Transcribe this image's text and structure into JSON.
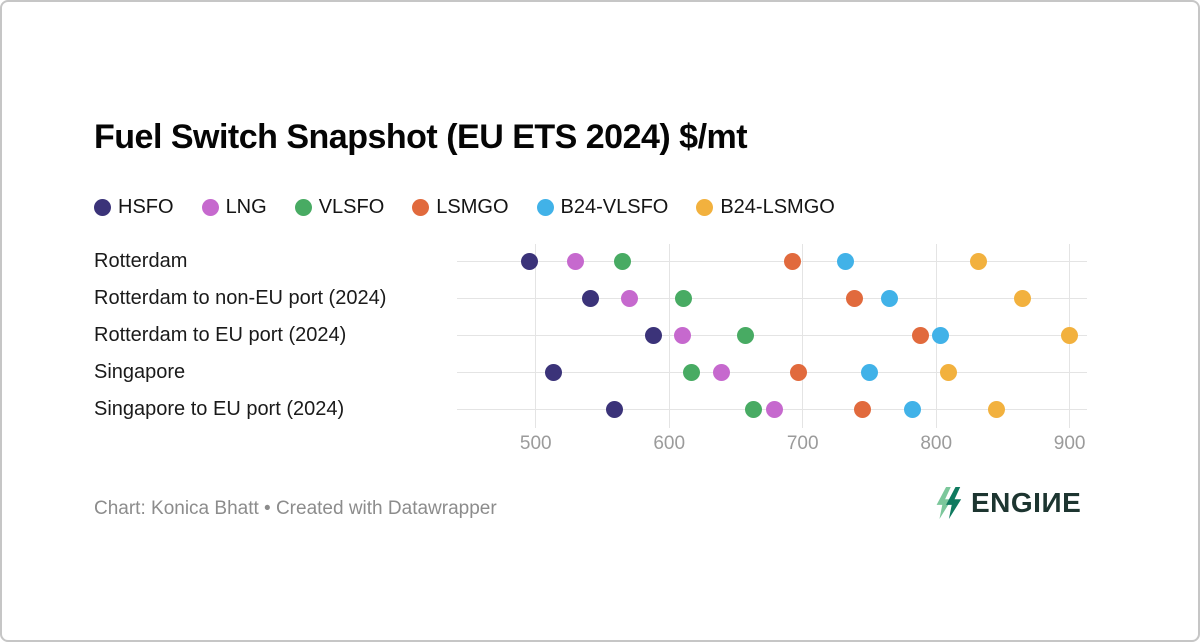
{
  "title": "Fuel Switch Snapshot (EU ETS 2024) $/mt",
  "footer": {
    "credit": "Chart: Konica Bhatt • Created with Datawrapper",
    "logo_text": "ENGIИE"
  },
  "logo_colors": {
    "mark_light": "#7CC79B",
    "mark_dark": "#0F7A5F",
    "text": "#1d3530"
  },
  "chart_data": {
    "type": "scatter",
    "title": "Fuel Switch Snapshot (EU ETS 2024) $/mt",
    "categories": [
      "Rotterdam",
      "Rotterdam to non-EU port (2024)",
      "Rotterdam to EU port (2024)",
      "Singapore",
      "Singapore to EU port (2024)"
    ],
    "series": [
      {
        "name": "HSFO",
        "color": "#3B3379",
        "values": [
          495,
          541,
          588,
          513,
          559
        ]
      },
      {
        "name": "LNG",
        "color": "#C669CE",
        "values": [
          530,
          570,
          610,
          639,
          679
        ]
      },
      {
        "name": "VLSFO",
        "color": "#48AB63",
        "values": [
          565,
          611,
          657,
          617,
          663
        ]
      },
      {
        "name": "LSMGO",
        "color": "#E16A3D",
        "values": [
          692,
          739,
          788,
          697,
          745
        ]
      },
      {
        "name": "B24-VLSFO",
        "color": "#41B2E8",
        "values": [
          732,
          765,
          803,
          750,
          782
        ]
      },
      {
        "name": "B24-LSMGO",
        "color": "#F2B13E",
        "values": [
          832,
          865,
          900,
          809,
          845
        ]
      }
    ],
    "x_ticks": [
      500,
      600,
      700,
      800,
      900
    ],
    "xlim": [
      441,
      913
    ],
    "xlabel": "$/mt",
    "grid": true,
    "legend_position": "top"
  }
}
